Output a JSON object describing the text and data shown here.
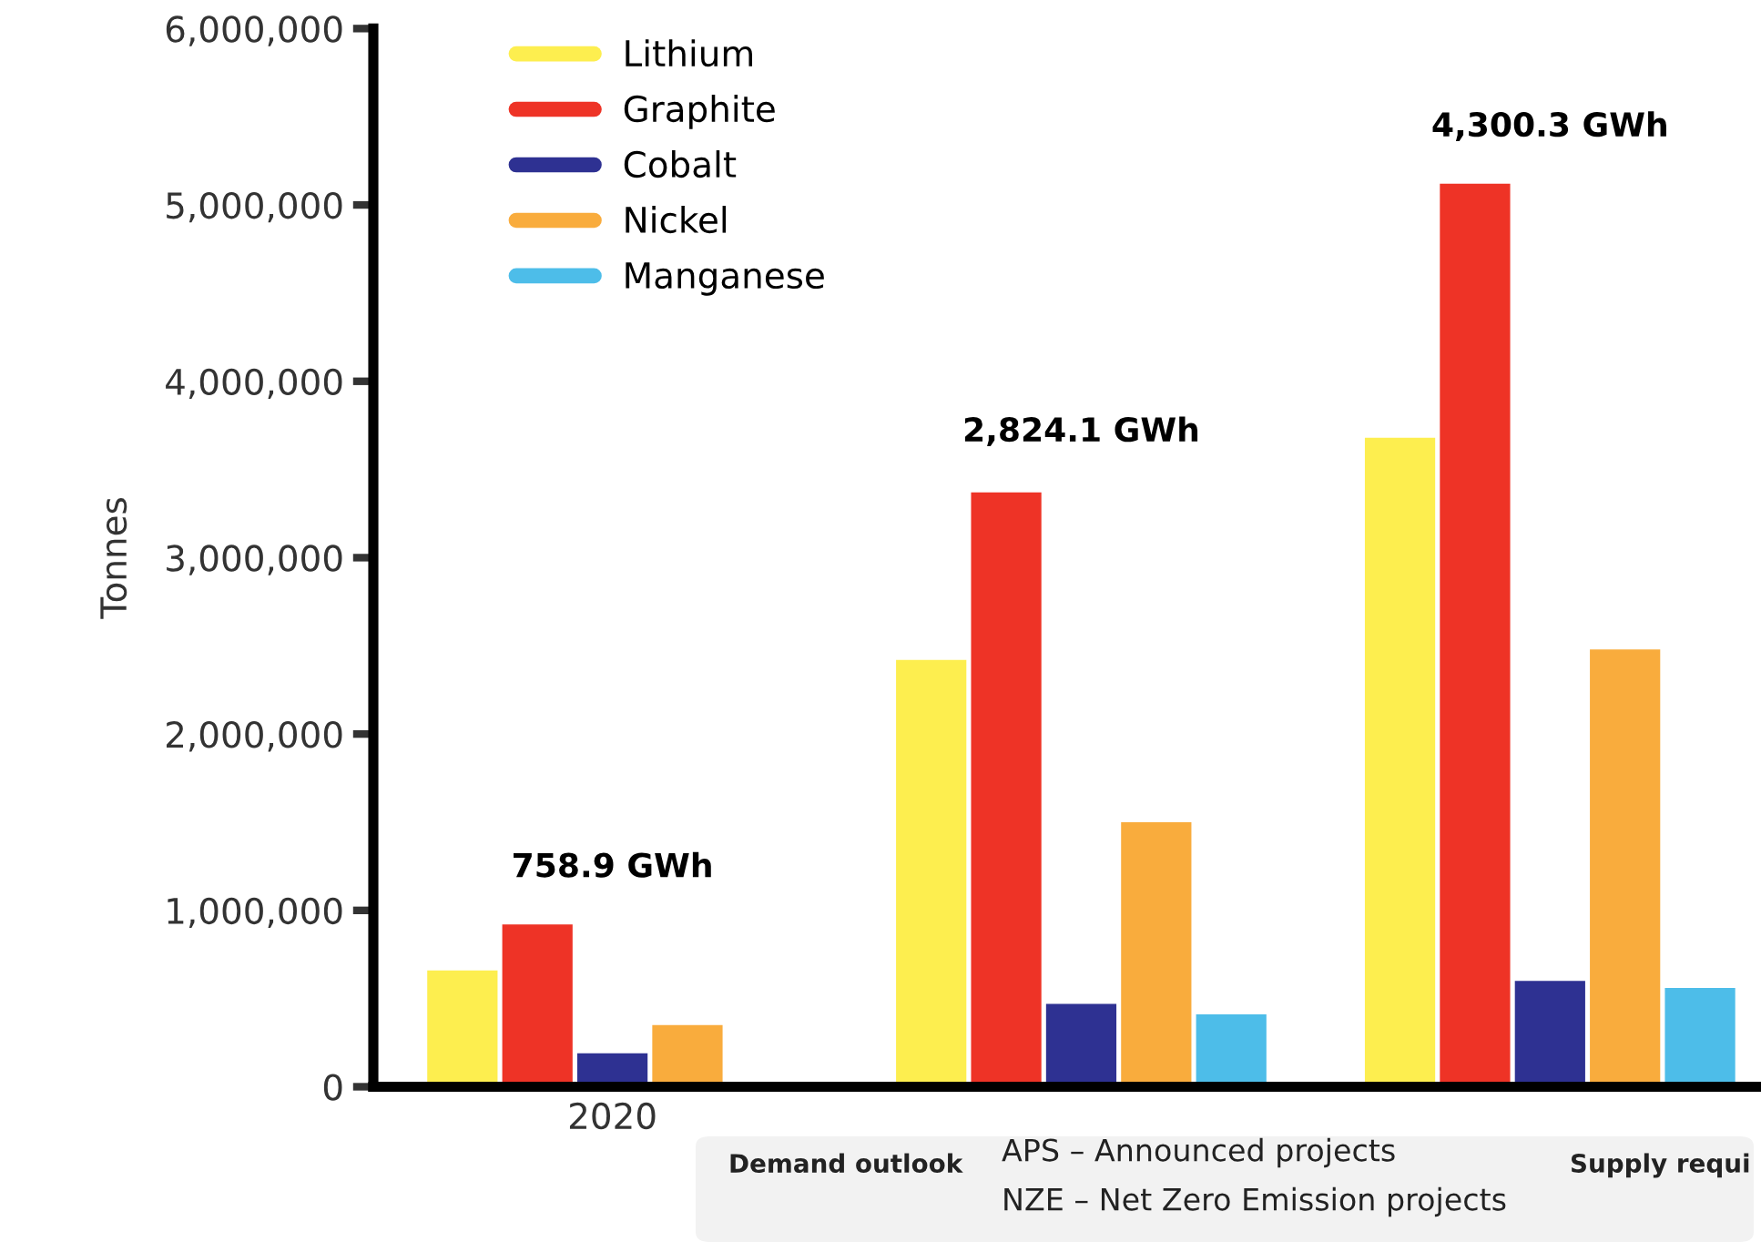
{
  "chart_data": {
    "type": "bar",
    "ylabel": "Tonnes",
    "categories": [
      "2020",
      null,
      null
    ],
    "series": [
      {
        "name": "Lithium",
        "color": "#fdee4f",
        "values": [
          660000,
          2420000,
          3680000
        ]
      },
      {
        "name": "Graphite",
        "color": "#ee3326",
        "values": [
          920000,
          3370000,
          5120000
        ]
      },
      {
        "name": "Cobalt",
        "color": "#2e3192",
        "values": [
          190000,
          470000,
          600000
        ]
      },
      {
        "name": "Nickel",
        "color": "#f9ac3d",
        "values": [
          350000,
          1500000,
          2480000
        ]
      },
      {
        "name": "Manganese",
        "color": "#4dbde9",
        "values": [
          null,
          410000,
          560000
        ]
      }
    ],
    "ylim": [
      0,
      6000000
    ],
    "yticks": [
      {
        "value": 0,
        "label": "0"
      },
      {
        "value": 1000000,
        "label": "1,000,000"
      },
      {
        "value": 2000000,
        "label": "2,000,000"
      },
      {
        "value": 3000000,
        "label": "3,000,000"
      },
      {
        "value": 4000000,
        "label": "4,000,000"
      },
      {
        "value": 5000000,
        "label": "5,000,000"
      },
      {
        "value": 6000000,
        "label": "6,000,000"
      }
    ],
    "grid": false,
    "legend": "top left",
    "annotations": [
      "758.9 GWh",
      "2,824.1 GWh",
      "4,300.3 GWh",
      "Demand outlook",
      "APS – Announced projects",
      "NZE – Net Zero Emission projects",
      "Supply requi"
    ]
  }
}
